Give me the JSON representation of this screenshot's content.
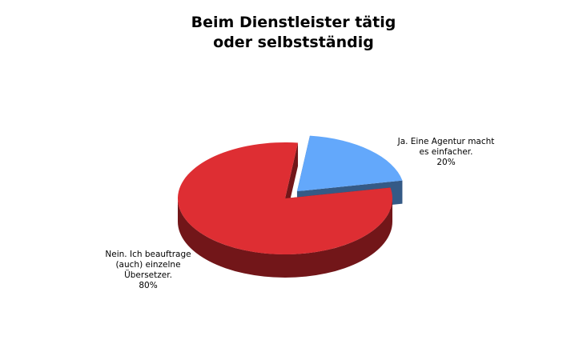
{
  "chart_data": {
    "type": "pie",
    "title": "Beim Dienstleister tätig oder selbstständig",
    "title_lines": [
      "Beim Dienstleister tätig",
      "oder selbstständig"
    ],
    "three_d": true,
    "slices": [
      {
        "label": "Ja. Eine Agentur macht es einfacher.",
        "label_lines": [
          "Ja. Eine Agentur macht",
          "es einfacher."
        ],
        "percent_text": "20%",
        "value": 20,
        "exploded": true,
        "color": "#63a8fb",
        "side_color": "#355a86"
      },
      {
        "label": "Nein. Ich beauftrage (auch) einzelne Übersetzer.",
        "label_lines": [
          "Nein. Ich beauftrage",
          "(auch) einzelne",
          "Übersetzer."
        ],
        "percent_text": "80%",
        "value": 80,
        "exploded": false,
        "color": "#de2e33",
        "side_color": "#721619"
      }
    ]
  }
}
